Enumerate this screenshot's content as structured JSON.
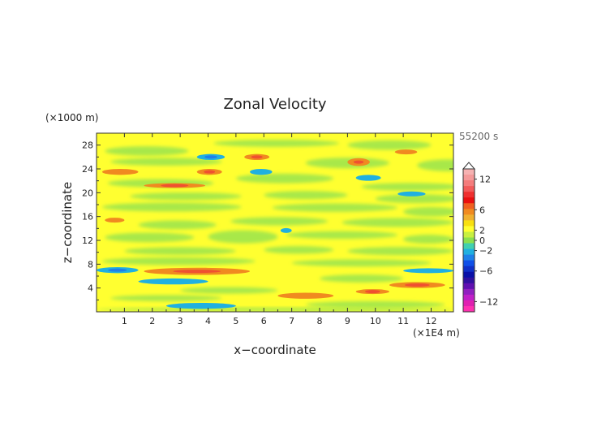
{
  "chart_data": {
    "type": "heatmap",
    "title": "Zonal Velocity",
    "time_label": "55200 s",
    "xlabel": "x−coordinate",
    "ylabel": "z−coordinate",
    "x_unit": "(×1E4 m)",
    "y_unit": "(×1000 m)",
    "x_ticks": [
      "1",
      "2",
      "3",
      "4",
      "5",
      "6",
      "7",
      "8",
      "9",
      "10",
      "11",
      "12"
    ],
    "y_ticks": [
      "4",
      "8",
      "12",
      "16",
      "20",
      "24",
      "28"
    ],
    "xlim": [
      0,
      12.8
    ],
    "ylim": [
      0,
      30
    ],
    "colorbar": {
      "tick_labels": [
        "12",
        "6",
        "2",
        "0",
        "−2",
        "−6",
        "−12"
      ],
      "tick_values": [
        12,
        6,
        2,
        0,
        -2,
        -6,
        -12
      ],
      "range": [
        -14,
        14
      ],
      "colors_top_to_bottom": [
        "#f6b2b2",
        "#f49a9a",
        "#f47c7c",
        "#f25a5a",
        "#ef3030",
        "#ea1010",
        "#f06020",
        "#f08a20",
        "#f0b030",
        "#f8e010",
        "#ffff30",
        "#c8f040",
        "#8be04e",
        "#40d0b0",
        "#20b0e0",
        "#1e80e8",
        "#1050e8",
        "#1030c8",
        "#0a10a8",
        "#3010a0",
        "#6010b0",
        "#9020c0",
        "#c020c8",
        "#e020b0",
        "#ff30b0"
      ]
    },
    "dominant_ranges": {
      "background_yellow": "0 to 2",
      "green": "-2 to 0",
      "orange": "2 to 6",
      "cyan_blue": "-6 to -2"
    },
    "features": [
      {
        "value": 4,
        "x": [
          1.7,
          3.9
        ],
        "z": [
          20.8,
          21.6
        ]
      },
      {
        "value": 5,
        "x": [
          3.6,
          4.5
        ],
        "z": [
          23,
          24
        ]
      },
      {
        "value": -4,
        "x": [
          3.6,
          4.6
        ],
        "z": [
          25.5,
          26.5
        ]
      },
      {
        "value": 4,
        "x": [
          5.3,
          6.2
        ],
        "z": [
          25.5,
          26.5
        ]
      },
      {
        "value": -3,
        "x": [
          5.5,
          6.3
        ],
        "z": [
          23,
          24
        ]
      },
      {
        "value": 4,
        "x": [
          9.0,
          9.8
        ],
        "z": [
          24.5,
          25.8
        ]
      },
      {
        "value": 3,
        "x": [
          10.7,
          11.5
        ],
        "z": [
          26.5,
          27.2
        ]
      },
      {
        "value": 3,
        "x": [
          0.2,
          1.5
        ],
        "z": [
          23,
          24
        ]
      },
      {
        "value": -3,
        "x": [
          9.3,
          10.2
        ],
        "z": [
          22,
          23
        ]
      },
      {
        "value": -3,
        "x": [
          10.8,
          11.8
        ],
        "z": [
          19.4,
          20.2
        ]
      },
      {
        "value": 3,
        "x": [
          0.3,
          1.0
        ],
        "z": [
          15,
          15.8
        ]
      },
      {
        "value": -3,
        "x": [
          6.6,
          7.0
        ],
        "z": [
          13.3,
          14.0
        ]
      },
      {
        "value": -4,
        "x": [
          0.0,
          1.5
        ],
        "z": [
          6.5,
          7.5
        ]
      },
      {
        "value": 5,
        "x": [
          1.7,
          5.5
        ],
        "z": [
          6.2,
          7.4
        ]
      },
      {
        "value": -3,
        "x": [
          1.5,
          4.0
        ],
        "z": [
          4.6,
          5.6
        ]
      },
      {
        "value": 4,
        "x": [
          10.5,
          12.5
        ],
        "z": [
          4,
          5
        ]
      },
      {
        "value": -3,
        "x": [
          11.0,
          12.8
        ],
        "z": [
          6.5,
          7.3
        ]
      },
      {
        "value": 4,
        "x": [
          9.3,
          10.5
        ],
        "z": [
          3,
          3.8
        ]
      },
      {
        "value": -3,
        "x": [
          2.5,
          5.0
        ],
        "z": [
          0.5,
          1.5
        ]
      },
      {
        "value": 3,
        "x": [
          6.5,
          8.5
        ],
        "z": [
          2.2,
          3.2
        ]
      }
    ]
  }
}
